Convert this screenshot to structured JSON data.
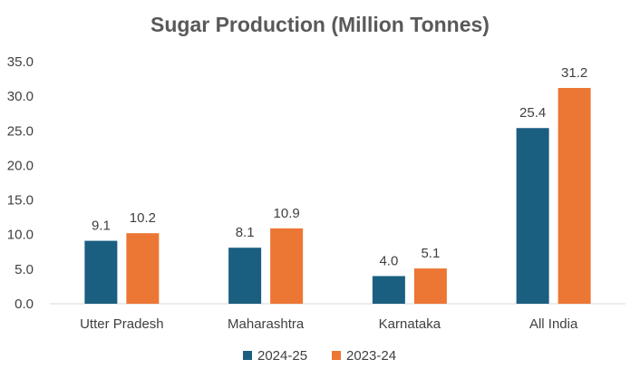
{
  "chart_data": {
    "type": "bar",
    "title": "Sugar Production (Million Tonnes)",
    "xlabel": "",
    "ylabel": "",
    "categories": [
      "Utter Pradesh",
      "Maharashtra",
      "Karnataka",
      "All India"
    ],
    "series": [
      {
        "name": "2024-25",
        "color": "#1a5e80",
        "values": [
          9.1,
          8.1,
          4.0,
          25.4
        ]
      },
      {
        "name": "2023-24",
        "color": "#ec7634",
        "values": [
          10.2,
          10.9,
          5.1,
          31.2
        ]
      }
    ],
    "ylim": [
      0,
      35
    ],
    "yticks": [
      0,
      5,
      10,
      15,
      20,
      25,
      30,
      35
    ],
    "grid": false,
    "legend": "bottom-center"
  }
}
